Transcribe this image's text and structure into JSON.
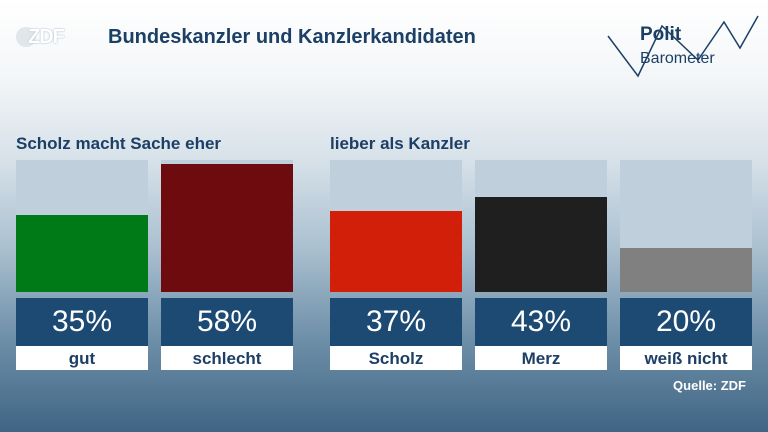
{
  "header": {
    "logo_text": "ZDF",
    "title": "Bundeskanzler und Kanzlerkandidaten",
    "brand_line1": "Polit",
    "brand_line2": "Barometer"
  },
  "footer": {
    "source": "Quelle: ZDF"
  },
  "colors": {
    "title": "#1c3f66",
    "value_box": "#1c4a73",
    "bar_background": "#bfd0dc",
    "gut": "#007a17",
    "schlecht": "#6e0b0f",
    "scholz": "#d21f0a",
    "merz": "#1f1f1f",
    "weiss_nicht": "#808080"
  },
  "chart_data": [
    {
      "type": "bar",
      "title": "Scholz macht Sache eher",
      "categories": [
        "gut",
        "schlecht"
      ],
      "values": [
        35,
        58
      ],
      "value_labels": [
        "35%",
        "58%"
      ],
      "unit": "%",
      "ylim": [
        0,
        60
      ],
      "colors": [
        "#007a17",
        "#6e0b0f"
      ],
      "grid": false
    },
    {
      "type": "bar",
      "title": "lieber als Kanzler",
      "categories": [
        "Scholz",
        "Merz",
        "weiß nicht"
      ],
      "values": [
        37,
        43,
        20
      ],
      "value_labels": [
        "37%",
        "43%",
        "20%"
      ],
      "unit": "%",
      "ylim": [
        0,
        60
      ],
      "colors": [
        "#d21f0a",
        "#1f1f1f",
        "#808080"
      ],
      "grid": false
    }
  ]
}
